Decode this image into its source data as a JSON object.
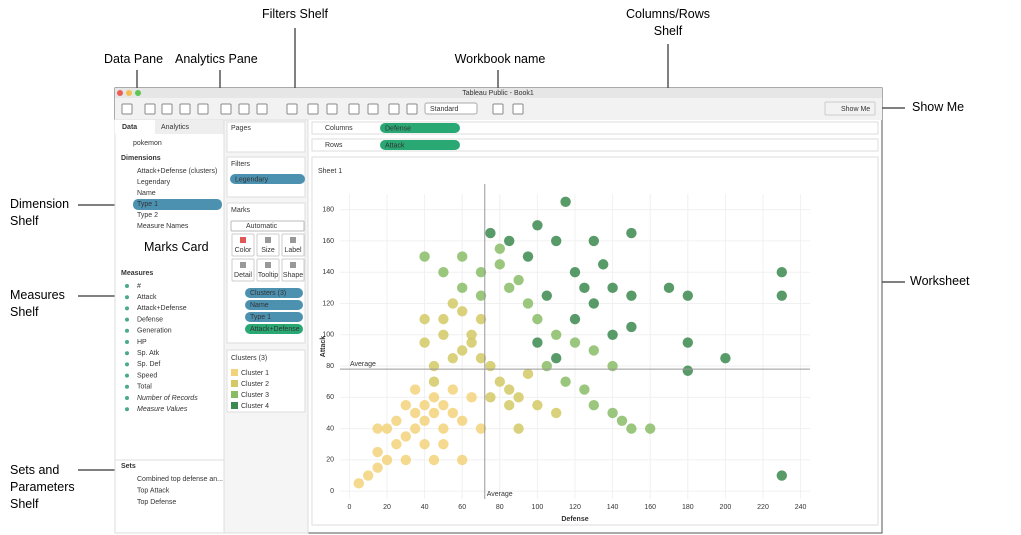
{
  "annotations": [
    "Filters Shelf",
    "Columns/Rows Shelf",
    "Data Pane",
    "Analytics Pane",
    "Workbook name",
    "Show Me",
    "Dimension Shelf",
    "Marks Card",
    "Worksheet",
    "Measures Shelf",
    "Sets and Parameters Shelf"
  ],
  "window": {
    "title": "Tableau Public - Book1",
    "fit": "Standard",
    "show_me": "Show Me"
  },
  "data_pane": {
    "tabs": [
      "Data",
      "Analytics"
    ],
    "source": "pokemon",
    "dimensions_title": "Dimensions",
    "dimensions": [
      "Attack+Defense (clusters)",
      "Legendary",
      "Name",
      "Type 1",
      "Type 2",
      "Measure Names"
    ],
    "measures_title": "Measures",
    "measures": [
      "#",
      "Attack",
      "Attack+Defense",
      "Defense",
      "Generation",
      "HP",
      "Sp. Atk",
      "Sp. Def",
      "Speed",
      "Total",
      "Number of Records",
      "Measure Values"
    ],
    "sets_title": "Sets",
    "sets": [
      "Combined top defense an...",
      "Top Attack",
      "Top Defense"
    ]
  },
  "pages": "Pages",
  "filters": {
    "title": "Filters",
    "pills": [
      "Legendary"
    ]
  },
  "marks": {
    "title": "Marks",
    "mark_type": "Automatic",
    "buttons": [
      "Color",
      "Size",
      "Label",
      "Detail",
      "Tooltip",
      "Shape"
    ],
    "pills": [
      "Clusters (3)",
      "Name",
      "Type 1",
      "Attack+Defense"
    ]
  },
  "legend_title": "Clusters (3)",
  "columns": {
    "label": "Columns",
    "pill": "Defense"
  },
  "rows": {
    "label": "Rows",
    "pill": "Attack"
  },
  "chart_data": {
    "type": "scatter",
    "title": "Sheet 1",
    "x_label": "Defense",
    "y_label": "Attack",
    "xlim": [
      -5,
      245
    ],
    "ylim": [
      -5,
      190
    ],
    "xticks": [
      0,
      20,
      40,
      60,
      80,
      100,
      120,
      140,
      160,
      180,
      200,
      220,
      240
    ],
    "yticks": [
      0,
      20,
      40,
      60,
      80,
      100,
      120,
      140,
      160,
      180
    ],
    "reference_lines": [
      {
        "axis": "x",
        "value": 72,
        "label": "Average"
      },
      {
        "axis": "y",
        "value": 78,
        "label": "Average"
      }
    ],
    "series": [
      {
        "name": "Cluster 1",
        "color": "#f2d27a",
        "values": [
          [
            5,
            5
          ],
          [
            10,
            10
          ],
          [
            15,
            15
          ],
          [
            20,
            20
          ],
          [
            15,
            25
          ],
          [
            25,
            30
          ],
          [
            30,
            35
          ],
          [
            35,
            40
          ],
          [
            40,
            45
          ],
          [
            45,
            50
          ],
          [
            50,
            55
          ],
          [
            55,
            50
          ],
          [
            45,
            60
          ],
          [
            40,
            55
          ],
          [
            35,
            50
          ],
          [
            50,
            40
          ],
          [
            60,
            45
          ],
          [
            55,
            65
          ],
          [
            30,
            55
          ],
          [
            25,
            45
          ],
          [
            20,
            40
          ],
          [
            40,
            30
          ],
          [
            50,
            30
          ],
          [
            65,
            60
          ],
          [
            35,
            65
          ],
          [
            70,
            40
          ],
          [
            45,
            20
          ],
          [
            15,
            40
          ],
          [
            60,
            20
          ],
          [
            30,
            20
          ]
        ]
      },
      {
        "name": "Cluster 2",
        "color": "#d4c965",
        "values": [
          [
            45,
            80
          ],
          [
            55,
            85
          ],
          [
            60,
            90
          ],
          [
            65,
            95
          ],
          [
            50,
            100
          ],
          [
            40,
            95
          ],
          [
            70,
            85
          ],
          [
            75,
            80
          ],
          [
            80,
            70
          ],
          [
            85,
            65
          ],
          [
            90,
            60
          ],
          [
            95,
            75
          ],
          [
            50,
            110
          ],
          [
            60,
            115
          ],
          [
            55,
            120
          ],
          [
            70,
            110
          ],
          [
            65,
            100
          ],
          [
            40,
            110
          ],
          [
            45,
            70
          ],
          [
            100,
            55
          ],
          [
            110,
            50
          ],
          [
            75,
            60
          ],
          [
            85,
            55
          ],
          [
            90,
            40
          ]
        ]
      },
      {
        "name": "Cluster 3",
        "color": "#88bd66",
        "values": [
          [
            40,
            150
          ],
          [
            60,
            150
          ],
          [
            50,
            140
          ],
          [
            60,
            130
          ],
          [
            70,
            125
          ],
          [
            80,
            145
          ],
          [
            85,
            130
          ],
          [
            95,
            120
          ],
          [
            100,
            110
          ],
          [
            110,
            100
          ],
          [
            120,
            95
          ],
          [
            130,
            90
          ],
          [
            105,
            80
          ],
          [
            115,
            70
          ],
          [
            125,
            65
          ],
          [
            130,
            55
          ],
          [
            140,
            50
          ],
          [
            145,
            45
          ],
          [
            150,
            40
          ],
          [
            160,
            40
          ],
          [
            140,
            80
          ],
          [
            80,
            155
          ],
          [
            90,
            135
          ],
          [
            70,
            140
          ]
        ]
      },
      {
        "name": "Cluster 4",
        "color": "#3b8a4f",
        "values": [
          [
            75,
            165
          ],
          [
            85,
            160
          ],
          [
            95,
            150
          ],
          [
            100,
            170
          ],
          [
            110,
            160
          ],
          [
            115,
            185
          ],
          [
            130,
            160
          ],
          [
            150,
            165
          ],
          [
            120,
            140
          ],
          [
            125,
            130
          ],
          [
            135,
            145
          ],
          [
            140,
            130
          ],
          [
            150,
            125
          ],
          [
            130,
            120
          ],
          [
            120,
            110
          ],
          [
            105,
            125
          ],
          [
            100,
            95
          ],
          [
            110,
            85
          ],
          [
            140,
            100
          ],
          [
            150,
            105
          ],
          [
            180,
            125
          ],
          [
            180,
            95
          ],
          [
            180,
            77
          ],
          [
            200,
            85
          ],
          [
            230,
            140
          ],
          [
            230,
            125
          ],
          [
            230,
            10
          ],
          [
            170,
            130
          ]
        ]
      }
    ]
  }
}
